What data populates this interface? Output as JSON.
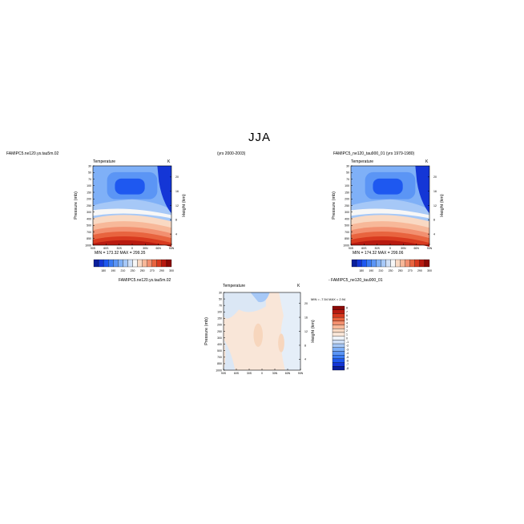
{
  "page_title": "JJA",
  "header_left": "FAMIPC5.ne120.ys.tau5m.02",
  "header_middle": "(yrs 2000-2003)",
  "header_right": "FAMIPC5_ne120_tau900_01 (yrs 1979-1980)",
  "diff_label_left": "FAMIPC5.ne120.ys.tau5m.02",
  "diff_label_right": "- FAMIPC5_ne120_tau900_01",
  "chart_data": [
    {
      "type": "heatmap",
      "title": "Temperature",
      "units": "K",
      "ylabel": "Pressure (mb)",
      "ylabel_right": "Height (km)",
      "x_ticks": [
        "90S",
        "60S",
        "30S",
        "0",
        "30N",
        "60N",
        "90N"
      ],
      "y_ticks": [
        "30",
        "50",
        "70",
        "100",
        "150",
        "200",
        "250",
        "300",
        "400",
        "500",
        "700",
        "850",
        "1000"
      ],
      "height_ticks": [
        "20",
        "16",
        "12",
        "8",
        "4"
      ],
      "colorbar_labels": [
        "180",
        "190",
        "210",
        "230",
        "250",
        "270",
        "290",
        "300"
      ],
      "colorbar_colors": [
        "#0a1f9c",
        "#1436d6",
        "#1e58f0",
        "#3a7bf5",
        "#5b95f5",
        "#7fb0f7",
        "#a6c8f7",
        "#cfe0f7",
        "#f7f7f7",
        "#f9d9c3",
        "#f7b899",
        "#f29070",
        "#e8643f",
        "#d83a1f",
        "#b81a10",
        "#8c0a06"
      ],
      "stats": "MIN = 173.32   MAX = 299.35"
    },
    {
      "type": "heatmap",
      "title": "Temperature",
      "units": "K",
      "ylabel": "Pressure (mb)",
      "ylabel_right": "Height (km)",
      "x_ticks": [
        "90S",
        "60S",
        "30S",
        "0",
        "30N",
        "60N",
        "90N"
      ],
      "y_ticks": [
        "30",
        "50",
        "70",
        "100",
        "150",
        "200",
        "250",
        "300",
        "400",
        "500",
        "700",
        "850",
        "1000"
      ],
      "height_ticks": [
        "20",
        "16",
        "12",
        "8",
        "4"
      ],
      "colorbar_labels": [
        "180",
        "190",
        "210",
        "230",
        "250",
        "270",
        "290",
        "300"
      ],
      "stats": "MIN = 174.32   MAX = 299.06"
    },
    {
      "type": "heatmap",
      "title": "Temperature",
      "units": "K",
      "ylabel": "Pressure (mb)",
      "ylabel_right": "Height (km)",
      "x_ticks": [
        "90S",
        "60S",
        "30S",
        "0",
        "30N",
        "60N",
        "90N"
      ],
      "y_ticks": [
        "30",
        "50",
        "70",
        "100",
        "150",
        "200",
        "250",
        "300",
        "400",
        "500",
        "700",
        "850",
        "1000"
      ],
      "height_ticks": [
        "20",
        "16",
        "12",
        "8",
        "4"
      ],
      "colorbar_labels": [
        "8",
        "7",
        "6",
        "5",
        "4",
        "3",
        "2",
        "1",
        "0",
        "-1",
        "-2",
        "-3",
        "-4",
        "-5",
        "-6",
        "-7",
        "-8"
      ],
      "colorbar_colors": [
        "#8c0a06",
        "#b81a10",
        "#d83a1f",
        "#e8643f",
        "#f29070",
        "#f7b899",
        "#f9d9c3",
        "#fbe8da",
        "#eef3f9",
        "#cfe0f7",
        "#a6c8f7",
        "#7fb0f7",
        "#5b95f5",
        "#3a7bf5",
        "#1e58f0",
        "#1436d6",
        "#0a1f9c"
      ],
      "stats": "MIN =  -7.54   MAX =   2.94"
    }
  ]
}
